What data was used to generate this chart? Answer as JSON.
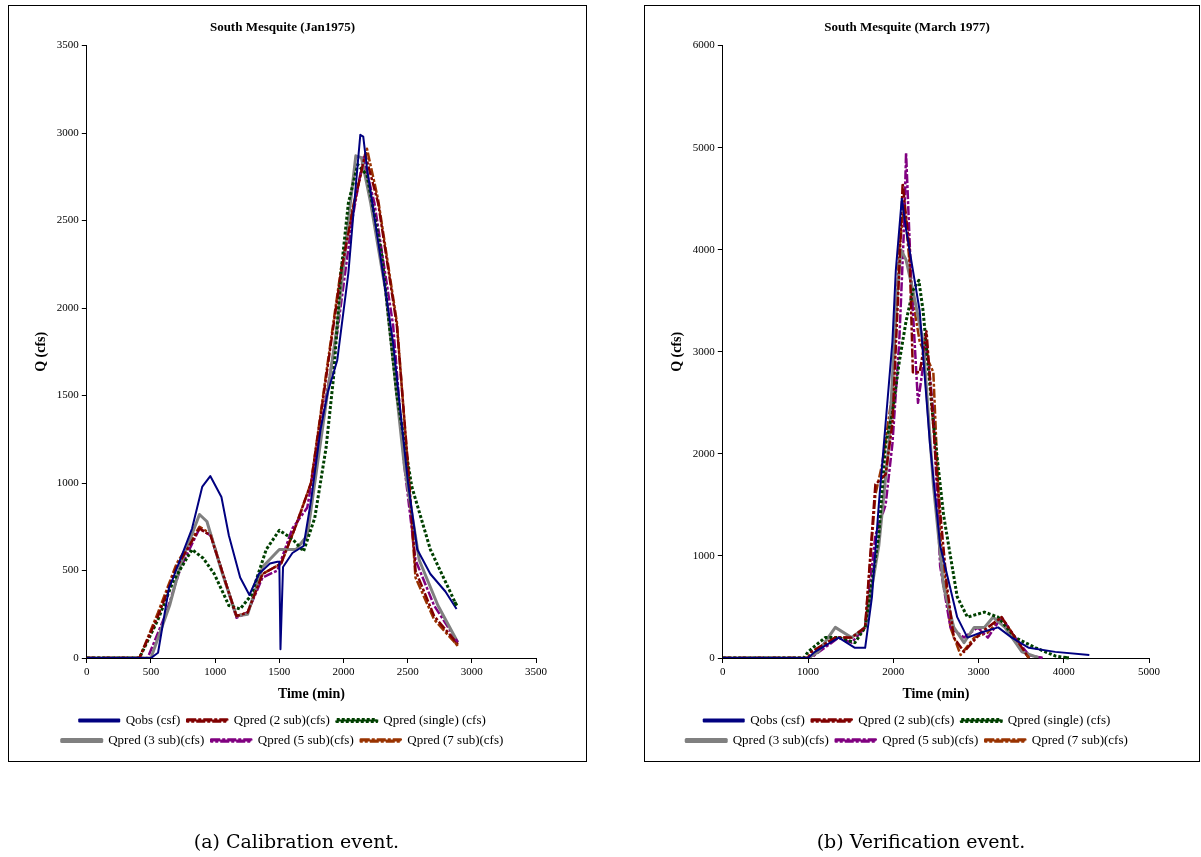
{
  "chart_data": [
    {
      "type": "line",
      "title": "South Mesquite (Jan1975)",
      "xlabel": "Time (min)",
      "ylabel": "Q (cfs)",
      "xlim": [
        0,
        3500
      ],
      "xticks": [
        0,
        500,
        1000,
        1500,
        2000,
        2500,
        3000,
        3500
      ],
      "ylim": [
        0,
        3500
      ],
      "yticks": [
        0,
        500,
        1000,
        1500,
        2000,
        2500,
        3000,
        3500
      ],
      "legend": "bottom",
      "annotations": [
        "(a) Calibration event."
      ],
      "series": [
        {
          "name": "Qobs (csf)",
          "color": "#000080",
          "line_style": "solid",
          "x": [
            0,
            450,
            500,
            555,
            640,
            674,
            820,
            900,
            962,
            1049,
            1107,
            1195,
            1267,
            1340,
            1427,
            1485,
            1500,
            1509,
            1529,
            1602,
            1689,
            1747,
            1820,
            1878,
            1951,
            2038,
            2096,
            2131,
            2154,
            2183,
            2299,
            2387,
            2503,
            2575,
            2677,
            2794,
            2881
          ],
          "values": [
            0,
            0,
            0,
            30,
            400,
            460,
            740,
            980,
            1040,
            920,
            700,
            460,
            360,
            480,
            540,
            550,
            550,
            50,
            520,
            600,
            640,
            900,
            1300,
            1520,
            1700,
            2200,
            2700,
            2990,
            2980,
            2800,
            2240,
            1800,
            1000,
            620,
            480,
            380,
            280
          ]
        },
        {
          "name": "Qpred (2 sub)(cfs)",
          "color": "#800000",
          "line_style": "dashed",
          "x": [
            0,
            410,
            555,
            700,
            878,
            965,
            1078,
            1166,
            1253,
            1369,
            1514,
            1631,
            1747,
            1864,
            1980,
            2067,
            2169,
            2270,
            2416,
            2503,
            2561,
            2706,
            2890
          ],
          "values": [
            0,
            0,
            240,
            520,
            740,
            700,
            440,
            240,
            260,
            480,
            540,
            760,
            1000,
            1600,
            2200,
            2540,
            2880,
            2600,
            1900,
            1100,
            500,
            240,
            80
          ]
        },
        {
          "name": "Qpred (single) (cfs)",
          "color": "#004000",
          "line_style": "dotted",
          "x": [
            0,
            410,
            555,
            674,
            820,
            907,
            994,
            1107,
            1195,
            1282,
            1398,
            1500,
            1602,
            1689,
            1776,
            1864,
            1922,
            1980,
            2038,
            2111,
            2183,
            2299,
            2416,
            2532,
            2677,
            2881
          ],
          "values": [
            0,
            0,
            220,
            440,
            620,
            570,
            480,
            300,
            280,
            360,
            620,
            730,
            680,
            610,
            800,
            1200,
            1600,
            2200,
            2600,
            2820,
            2760,
            2300,
            1500,
            980,
            620,
            300
          ]
        },
        {
          "name": "Qpred (3 sub)(cfs)",
          "color": "#808080",
          "line_style": "solid",
          "x": [
            0,
            500,
            645,
            733,
            878,
            936,
            1049,
            1166,
            1253,
            1369,
            1500,
            1631,
            1718,
            1834,
            1951,
            2038,
            2096,
            2140,
            2212,
            2328,
            2474,
            2590,
            2736,
            2890
          ],
          "values": [
            0,
            0,
            300,
            540,
            820,
            780,
            500,
            240,
            250,
            520,
            620,
            620,
            700,
            1300,
            1900,
            2500,
            2870,
            2860,
            2600,
            2100,
            1100,
            560,
            300,
            90
          ]
        },
        {
          "name": "Qpred (5 sub)(cfs)",
          "color": "#800080",
          "line_style": "dashed",
          "x": [
            0,
            474,
            620,
            733,
            878,
            965,
            1078,
            1166,
            1253,
            1369,
            1485,
            1602,
            1718,
            1834,
            1951,
            2067,
            2154,
            2241,
            2387,
            2474,
            2561,
            2706,
            2890
          ],
          "values": [
            0,
            0,
            260,
            520,
            740,
            700,
            440,
            230,
            260,
            460,
            500,
            740,
            860,
            1360,
            1860,
            2500,
            2860,
            2600,
            1900,
            1100,
            560,
            300,
            90
          ]
        },
        {
          "name": "Qpred (7 sub)(cfs)",
          "color": "#993300",
          "line_style": "dashed",
          "x": [
            0,
            410,
            555,
            700,
            878,
            965,
            1078,
            1166,
            1253,
            1369,
            1514,
            1631,
            1747,
            1864,
            1980,
            2067,
            2183,
            2270,
            2416,
            2503,
            2561,
            2706,
            2890
          ],
          "values": [
            0,
            0,
            260,
            540,
            750,
            710,
            440,
            240,
            260,
            480,
            540,
            760,
            1000,
            1620,
            2220,
            2560,
            2910,
            2620,
            1920,
            1080,
            460,
            220,
            70
          ]
        }
      ]
    },
    {
      "type": "line",
      "title": "South Mesquite (March 1977)",
      "xlabel": "Time (min)",
      "ylabel": "Q (cfs)",
      "xlim": [
        0,
        5000
      ],
      "xticks": [
        0,
        1000,
        2000,
        3000,
        4000,
        5000
      ],
      "ylim": [
        0,
        6000
      ],
      "yticks": [
        0,
        1000,
        2000,
        3000,
        4000,
        5000,
        6000
      ],
      "legend": "bottom",
      "annotations": [
        "(b) Verification event."
      ],
      "series": [
        {
          "name": "Qobs (csf)",
          "color": "#000080",
          "line_style": "solid",
          "x": [
            0,
            1000,
            1080,
            1360,
            1550,
            1670,
            1750,
            1830,
            1910,
            1990,
            2030,
            2070,
            2100,
            2150,
            2230,
            2310,
            2430,
            2550,
            2750,
            2870,
            3030,
            3230,
            3390,
            3590,
            3900,
            4300
          ],
          "values": [
            0,
            0,
            60,
            200,
            100,
            100,
            600,
            1500,
            2300,
            3100,
            3800,
            4200,
            4500,
            4200,
            3800,
            3400,
            2100,
            1100,
            400,
            200,
            250,
            300,
            200,
            100,
            60,
            30
          ]
        },
        {
          "name": "Qpred (2 sub)(cfs)",
          "color": "#800000",
          "line_style": "dashed",
          "x": [
            0,
            1000,
            1040,
            1320,
            1510,
            1670,
            1790,
            1910,
            1990,
            2070,
            2110,
            2190,
            2230,
            2310,
            2390,
            2510,
            2630,
            2710,
            2830,
            3030,
            3270,
            3430,
            3590
          ],
          "values": [
            0,
            0,
            60,
            200,
            200,
            300,
            1700,
            1800,
            2300,
            3800,
            4650,
            4000,
            2800,
            2800,
            3200,
            1800,
            700,
            200,
            60,
            250,
            400,
            200,
            0
          ]
        },
        {
          "name": "Qpred (single) (cfs)",
          "color": "#004000",
          "line_style": "dotted",
          "x": [
            0,
            950,
            1000,
            1200,
            1360,
            1550,
            1670,
            1830,
            1910,
            1990,
            2070,
            2150,
            2230,
            2300,
            2350,
            2470,
            2590,
            2750,
            2870,
            3070,
            3230,
            3430,
            3670,
            3900,
            4060
          ],
          "values": [
            0,
            0,
            60,
            200,
            200,
            150,
            300,
            1200,
            2100,
            2400,
            2900,
            3300,
            3600,
            3700,
            3400,
            2300,
            1400,
            600,
            400,
            450,
            400,
            200,
            100,
            20,
            0
          ]
        },
        {
          "name": "Qpred (3 sub)(cfs)",
          "color": "#808080",
          "line_style": "solid",
          "x": [
            0,
            1000,
            1120,
            1320,
            1510,
            1670,
            1830,
            1950,
            2030,
            2090,
            2150,
            2230,
            2350,
            2470,
            2590,
            2710,
            2830,
            2950,
            3070,
            3170,
            3310,
            3510,
            3710
          ],
          "values": [
            0,
            0,
            60,
            300,
            200,
            300,
            1100,
            2100,
            3400,
            4000,
            3900,
            3600,
            3100,
            1700,
            700,
            300,
            150,
            300,
            300,
            400,
            300,
            60,
            0
          ]
        },
        {
          "name": "Qpred (5 sub)(cfs)",
          "color": "#800080",
          "line_style": "dashed",
          "x": [
            0,
            1040,
            1080,
            1360,
            1510,
            1670,
            1790,
            1910,
            1990,
            2070,
            2130,
            2150,
            2210,
            2290,
            2390,
            2470,
            2550,
            2670,
            2830,
            2990,
            3110,
            3270,
            3430,
            3590,
            3750
          ],
          "values": [
            0,
            0,
            30,
            200,
            150,
            300,
            1200,
            1500,
            2100,
            3100,
            4300,
            4950,
            3700,
            2500,
            3100,
            2400,
            900,
            300,
            200,
            300,
            200,
            400,
            200,
            30,
            0
          ]
        },
        {
          "name": "Qpred (7 sub)(cfs)",
          "color": "#993300",
          "line_style": "dashed",
          "x": [
            0,
            1000,
            1040,
            1320,
            1510,
            1670,
            1790,
            1870,
            1990,
            2070,
            2130,
            2230,
            2310,
            2470,
            2550,
            2670,
            2790,
            2950,
            3110,
            3270,
            3430,
            3590
          ],
          "values": [
            0,
            0,
            60,
            200,
            200,
            300,
            1600,
            1900,
            2600,
            4000,
            4450,
            3500,
            3100,
            2800,
            1200,
            300,
            30,
            200,
            250,
            400,
            200,
            0
          ]
        }
      ]
    }
  ]
}
